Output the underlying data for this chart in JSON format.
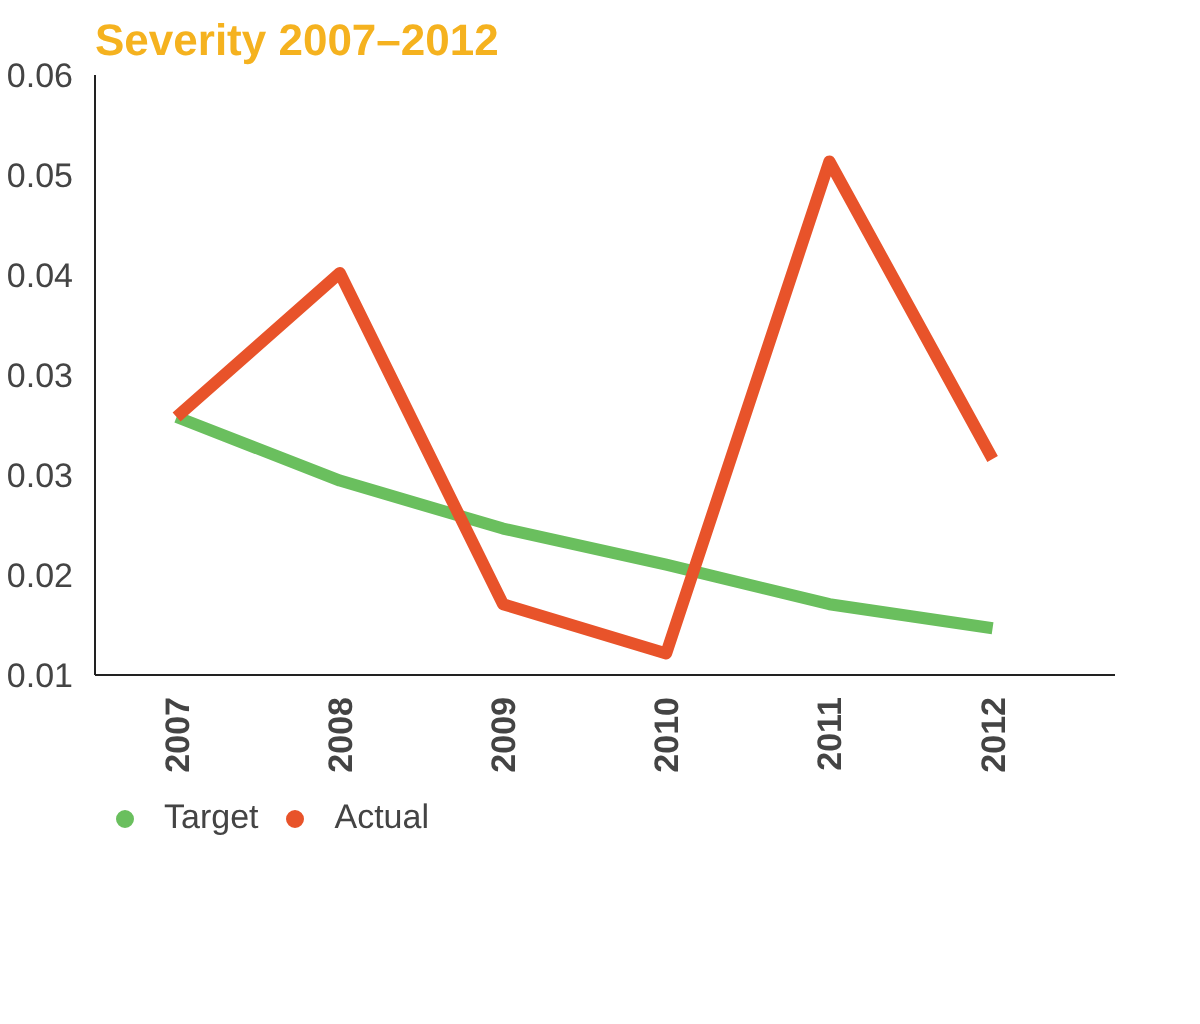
{
  "chart_data": {
    "type": "line",
    "title": "Severity 2007–2012",
    "categories": [
      "2007",
      "2008",
      "2009",
      "2010",
      "2011",
      "2012"
    ],
    "series": [
      {
        "name": "Target",
        "color": "#6abf5e",
        "values": [
          0.0315,
          0.0262,
          0.0222,
          0.0192,
          0.0159,
          0.0139
        ]
      },
      {
        "name": "Actual",
        "color": "#e8532a",
        "values": [
          0.0315,
          0.0435,
          0.0159,
          0.0118,
          0.0528,
          0.028
        ]
      }
    ],
    "ylim": [
      0.01,
      0.06
    ],
    "yticks": [
      0.01,
      {
        "value": 0.01833,
        "label": "0.02"
      },
      {
        "value": 0.02667,
        "label": "0.03"
      },
      {
        "value": 0.035,
        "label": "0.03"
      },
      {
        "value": 0.04333,
        "label": "0.04"
      },
      {
        "value": 0.05167,
        "label": "0.05"
      },
      0.06
    ],
    "grid": false,
    "legend": "bottom",
    "marker": "none",
    "line_style": "solid"
  }
}
